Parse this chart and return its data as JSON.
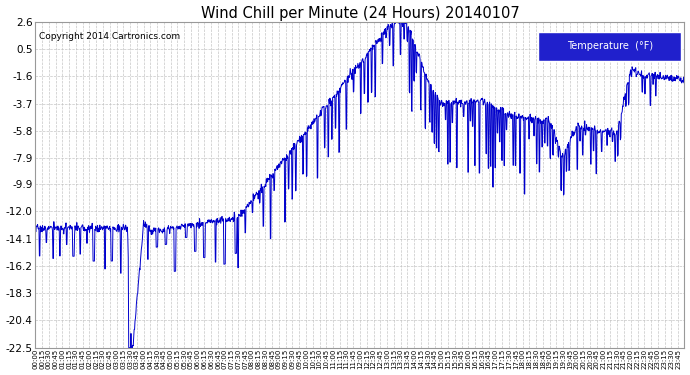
{
  "title": "Wind Chill per Minute (24 Hours) 20140107",
  "copyright": "Copyright 2014 Cartronics.com",
  "legend_label": "Temperature  (°F)",
  "line_color": "#0000CC",
  "background_color": "#ffffff",
  "grid_color": "#c0c0c0",
  "ylim": [
    -22.5,
    2.6
  ],
  "yticks": [
    2.6,
    0.5,
    -1.6,
    -3.7,
    -5.8,
    -7.9,
    -9.9,
    -12.0,
    -14.1,
    -16.2,
    -18.3,
    -20.4,
    -22.5
  ]
}
